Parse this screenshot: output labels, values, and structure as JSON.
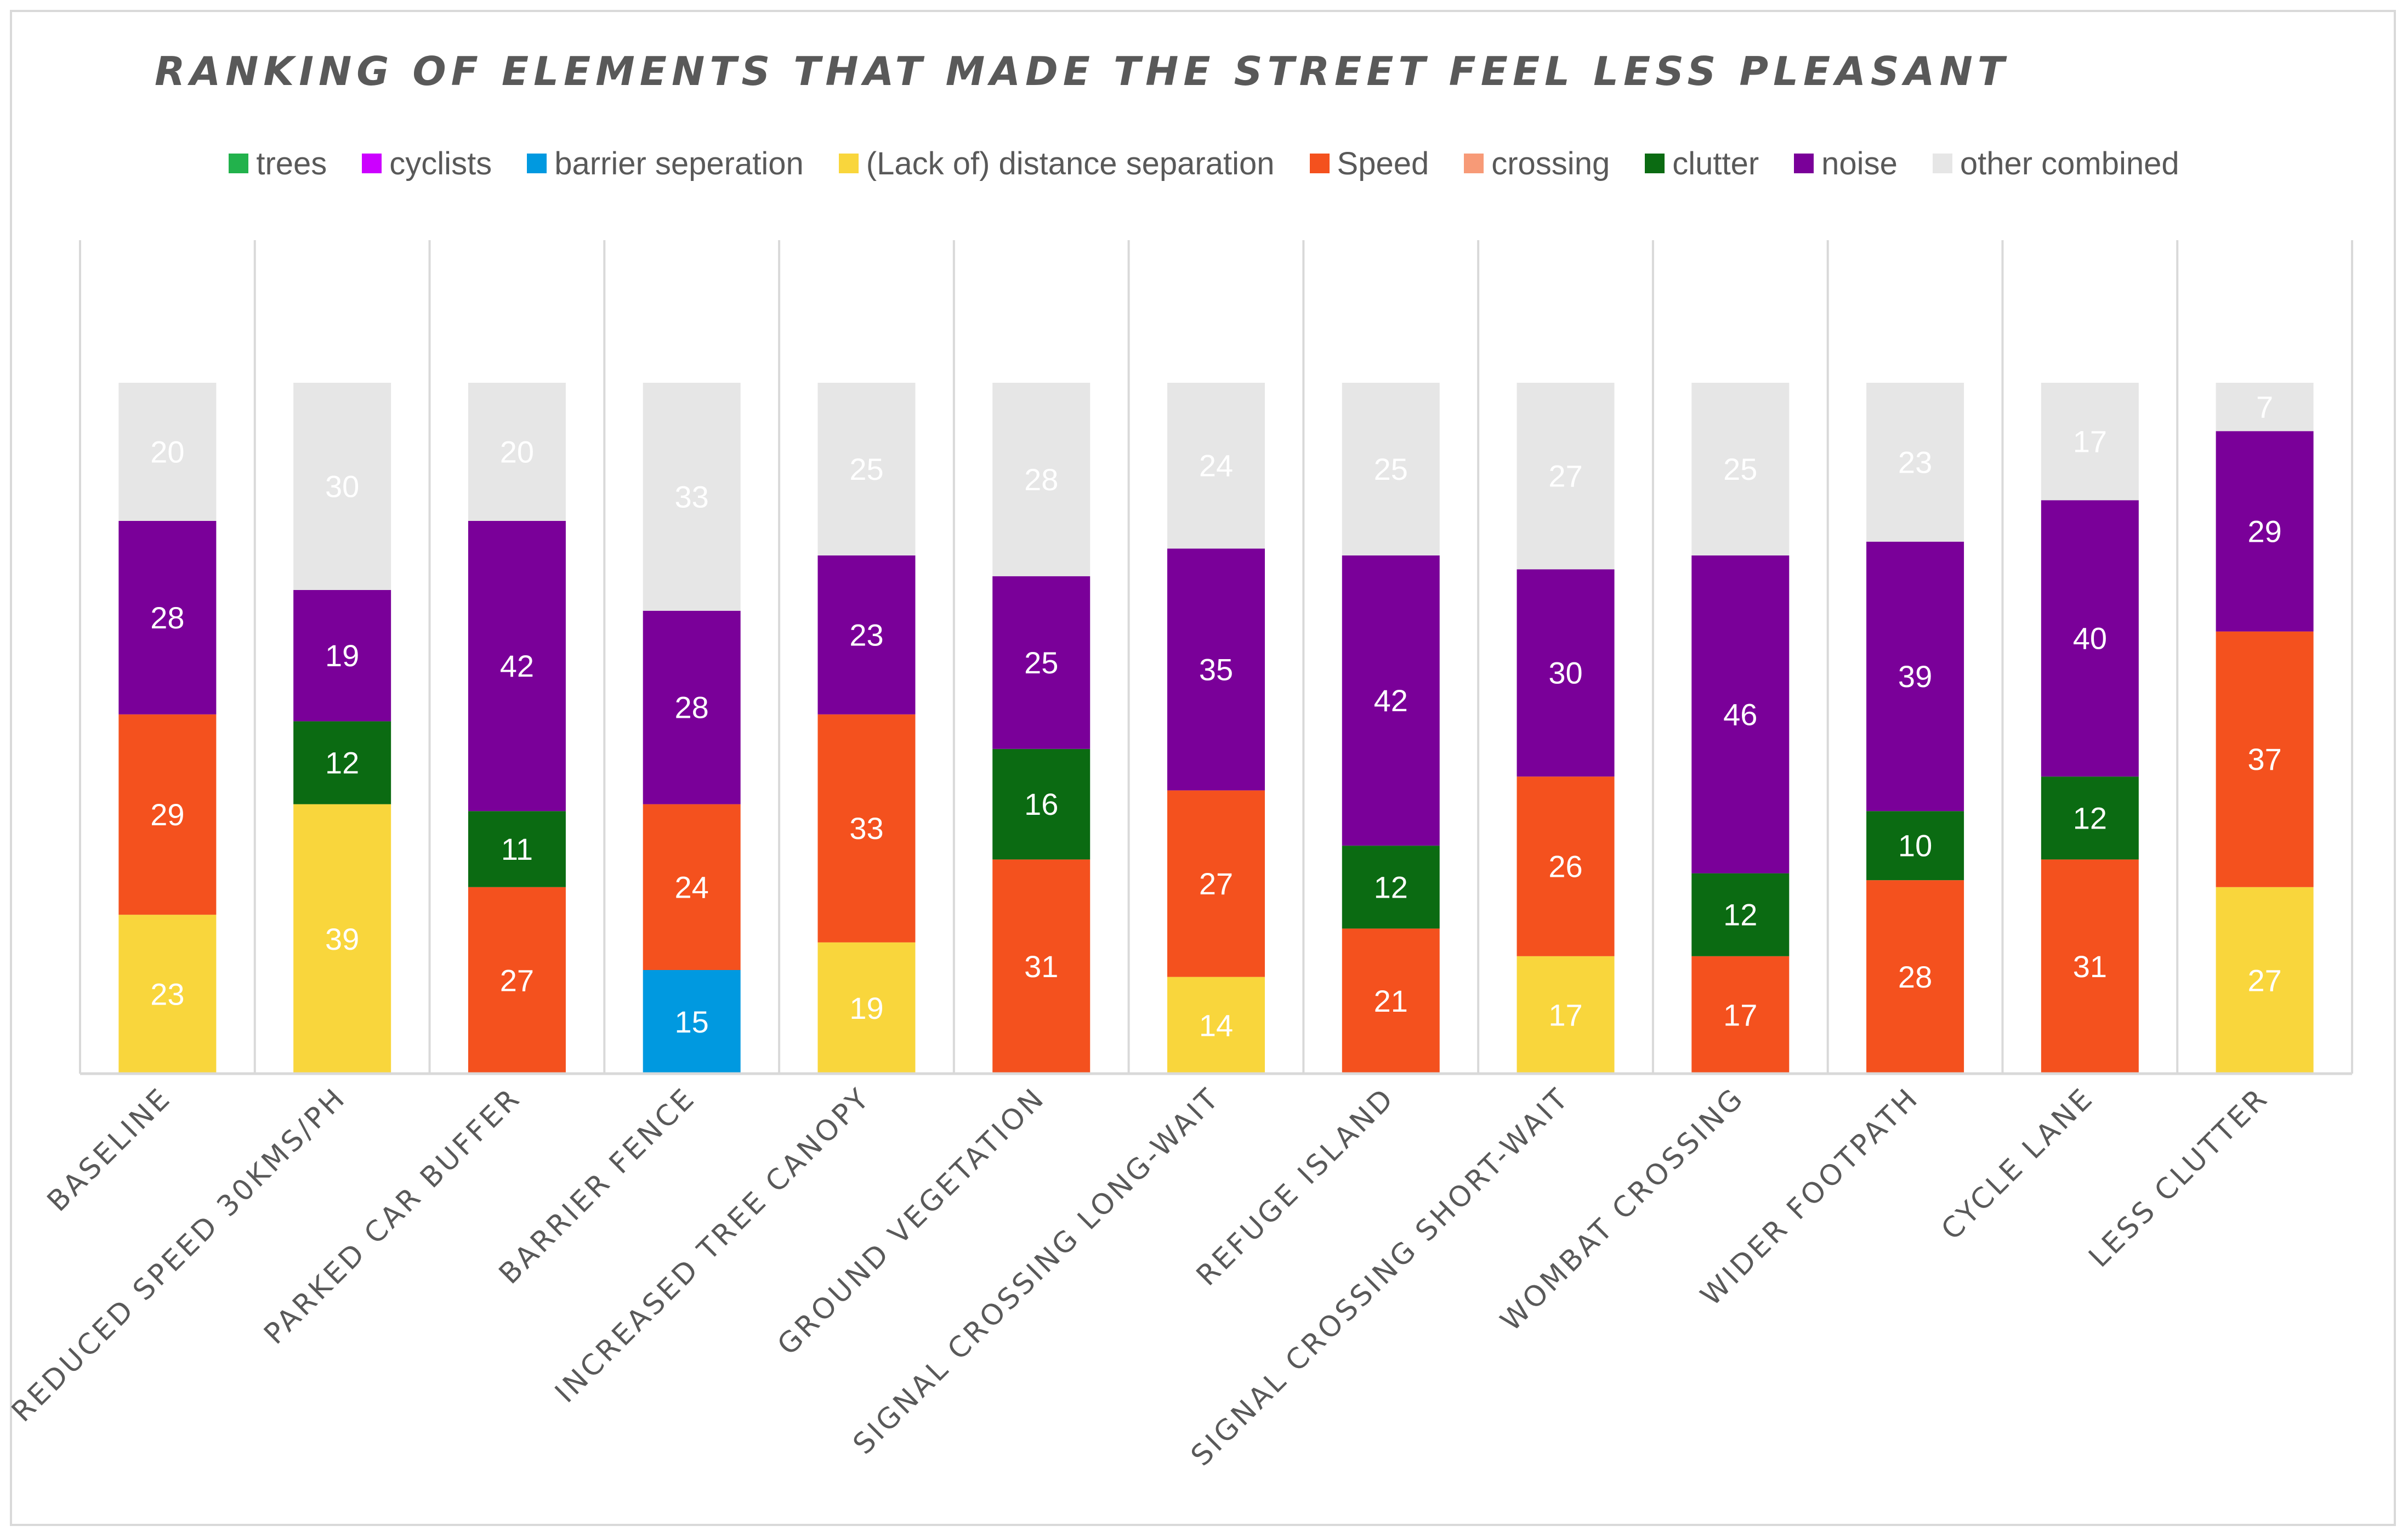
{
  "chart_data": {
    "type": "bar",
    "stacked": true,
    "title": "RANKING OF ELEMENTS THAT MADE THE STREET FEEL LESS PLEASANT",
    "xlabel": "",
    "ylabel": "",
    "ylim": [
      0,
      100
    ],
    "grid": "vertical category separators",
    "legend_position": "top",
    "categories": [
      "BASELINE",
      "REDUCED SPEED 30KMS/PH",
      "PARKED CAR BUFFER",
      "BARRIER FENCE",
      "INCREASED TREE CANOPY",
      "GROUND VEGETATION",
      "SIGNAL CROSSING LONG-WAIT",
      "REFUGE ISLAND",
      "SIGNAL CROSSING SHORT-WAIT",
      "WOMBAT CROSSING",
      "WIDER FOOTPATH",
      "CYCLE LANE",
      "LESS CLUTTER"
    ],
    "series": [
      {
        "name": "trees",
        "color": "#22b24c",
        "label_color": "#ffffff",
        "values": [
          null,
          null,
          null,
          null,
          null,
          null,
          null,
          null,
          null,
          null,
          null,
          null,
          null
        ]
      },
      {
        "name": "cyclists",
        "color": "#cc00ff",
        "label_color": "#ffffff",
        "values": [
          null,
          null,
          null,
          null,
          null,
          null,
          null,
          null,
          null,
          null,
          null,
          null,
          null
        ]
      },
      {
        "name": "barrier seperation",
        "color": "#0099e0",
        "label_color": "#ffffff",
        "values": [
          null,
          null,
          null,
          15,
          null,
          null,
          null,
          null,
          null,
          null,
          null,
          null,
          null
        ]
      },
      {
        "name": "(Lack of) distance separation",
        "color": "#f9d63c",
        "label_color": "#ffffff",
        "values": [
          23,
          39,
          null,
          null,
          19,
          null,
          14,
          null,
          17,
          null,
          null,
          null,
          27
        ]
      },
      {
        "name": "Speed",
        "color": "#f4511e",
        "label_color": "#ffffff",
        "values": [
          29,
          null,
          27,
          24,
          33,
          31,
          27,
          21,
          26,
          17,
          28,
          31,
          37
        ]
      },
      {
        "name": "crossing",
        "color": "#f79a77",
        "label_color": "#ffffff",
        "values": [
          null,
          null,
          null,
          null,
          null,
          null,
          null,
          null,
          null,
          null,
          null,
          null,
          null
        ]
      },
      {
        "name": "clutter",
        "color": "#0b6b12",
        "label_color": "#ffffff",
        "values": [
          null,
          12,
          11,
          null,
          null,
          16,
          null,
          12,
          null,
          12,
          10,
          12,
          null
        ]
      },
      {
        "name": "noise",
        "color": "#7a0099",
        "label_color": "#ffffff",
        "values": [
          28,
          19,
          42,
          28,
          23,
          25,
          35,
          42,
          30,
          46,
          39,
          40,
          29
        ]
      },
      {
        "name": "other combined",
        "color": "#e6e6e6",
        "label_color": "#ffffff",
        "values": [
          20,
          30,
          20,
          33,
          25,
          28,
          24,
          25,
          27,
          25,
          23,
          17,
          7
        ]
      }
    ]
  }
}
